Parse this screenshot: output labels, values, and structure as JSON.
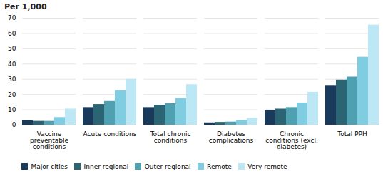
{
  "chart_data": {
    "type": "bar",
    "ylabel": "Per 1,000",
    "categories": [
      "Vaccine\npreventable\nconditions",
      "Acute conditions",
      "Total chronic\nconditions",
      "Diabetes\ncomplications",
      "Chronic\nconditions (excl.\ndiabetes)",
      "Total PPH"
    ],
    "series": [
      {
        "name": "Major cities",
        "color": "#1a3a5c",
        "values": [
          3.0,
          11.5,
          11.5,
          1.5,
          9.5,
          26.0
        ]
      },
      {
        "name": "Inner regional",
        "color": "#2b6472",
        "values": [
          2.5,
          13.5,
          13.0,
          1.8,
          10.5,
          29.5
        ]
      },
      {
        "name": "Outer regional",
        "color": "#4fa0b0",
        "values": [
          2.5,
          15.5,
          14.0,
          2.0,
          11.5,
          31.5
        ]
      },
      {
        "name": "Remote",
        "color": "#80cce0",
        "values": [
          5.0,
          22.5,
          17.5,
          3.0,
          14.5,
          44.5
        ]
      },
      {
        "name": "Very remote",
        "color": "#bce8f5",
        "values": [
          10.5,
          30.0,
          26.5,
          4.5,
          21.5,
          65.5
        ]
      }
    ],
    "ylim": [
      0,
      70
    ],
    "yticks": [
      0,
      10,
      20,
      30,
      40,
      50,
      60,
      70
    ],
    "grid": true,
    "legend": "bottom"
  }
}
